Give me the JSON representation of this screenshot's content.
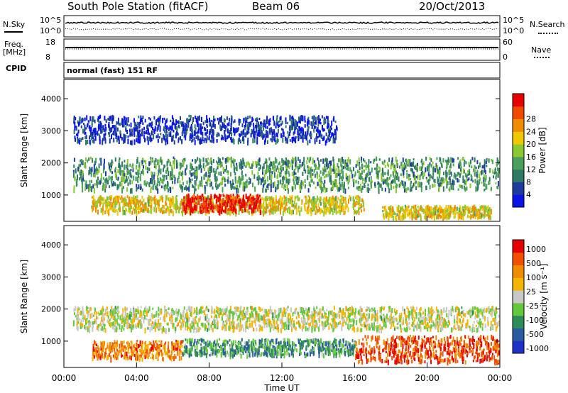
{
  "header": {
    "title": "South Pole Station (fitACF)",
    "beam": "Beam 06",
    "date": "20/Oct/2013"
  },
  "noise_panel": {
    "left_label": "N.Sky",
    "right_label": "N.Search",
    "left_ticks": [
      "10^5",
      "10^0"
    ],
    "right_ticks": [
      "10^5",
      "10^0"
    ]
  },
  "freq_panel": {
    "left_label_line1": "Freq.",
    "left_label_line2": "[MHz]",
    "right_label": "Nave",
    "left_ticks": [
      "18",
      "8"
    ],
    "right_ticks": [
      "60",
      "0"
    ]
  },
  "cpid_panel": {
    "label": "CPID",
    "text": "normal (fast) 151 RF"
  },
  "chart_data": [
    {
      "type": "heatmap",
      "parameter": "Power",
      "ylabel": "Slant Range [km]",
      "yticks": [
        1000,
        2000,
        3000,
        4000
      ],
      "ylim": [
        180,
        4600
      ],
      "xlim": [
        0,
        24
      ],
      "colorbar": {
        "label": "Power [dB]",
        "ticks": [
          "4",
          "8",
          "12",
          "16",
          "20",
          "24",
          "28"
        ],
        "colors": [
          "#0a14e6",
          "#1e3ca0",
          "#2e7a64",
          "#4aa05a",
          "#8cc832",
          "#f0c800",
          "#f08c00",
          "#f04a00",
          "#e60000"
        ]
      },
      "bands": [
        {
          "x": [
            0.5,
            24
          ],
          "y": [
            1200,
            2200
          ],
          "level": 0.35
        },
        {
          "x": [
            1.5,
            16.5
          ],
          "y": [
            500,
            1000
          ],
          "level": 0.6
        },
        {
          "x": [
            6.5,
            10.8
          ],
          "y": [
            520,
            1050
          ],
          "level": 0.95
        },
        {
          "x": [
            17.5,
            23.5
          ],
          "y": [
            350,
            700
          ],
          "level": 0.6
        },
        {
          "x": [
            0.5,
            15
          ],
          "y": [
            2700,
            3500
          ],
          "level": 0.12
        }
      ]
    },
    {
      "type": "heatmap",
      "parameter": "Velocity",
      "ylabel": "Slant Range [km]",
      "yticks": [
        1000,
        2000,
        3000,
        4000
      ],
      "ylim": [
        180,
        4600
      ],
      "xlim": [
        0,
        24
      ],
      "xlabel": "Time UT",
      "xticks": [
        "00:00",
        "04:00",
        "08:00",
        "12:00",
        "16:00",
        "20:00",
        "00:00"
      ],
      "colorbar": {
        "label": "Velocity [m s⁻¹]",
        "ticks": [
          "1000",
          "500",
          "100",
          "25",
          "-25",
          "-100",
          "-500",
          "-1000"
        ],
        "colors": [
          "#1e32c8",
          "#2a5aa0",
          "#2e8c5a",
          "#64c83c",
          "#c8c8c8",
          "#f5b400",
          "#f08c00",
          "#f05000",
          "#e60000"
        ]
      },
      "bands": [
        {
          "x": [
            0.5,
            24
          ],
          "y": [
            1400,
            2100
          ],
          "level": 0.5
        },
        {
          "x": [
            1.5,
            6.5
          ],
          "y": [
            500,
            1050
          ],
          "level": 0.75
        },
        {
          "x": [
            6.5,
            16
          ],
          "y": [
            600,
            1100
          ],
          "level": 0.3
        },
        {
          "x": [
            16,
            24
          ],
          "y": [
            400,
            1200
          ],
          "level": 0.85
        }
      ]
    }
  ],
  "x_axis": {
    "label": "Time UT",
    "ticks": [
      "00:00",
      "04:00",
      "08:00",
      "12:00",
      "16:00",
      "20:00",
      "00:00"
    ]
  }
}
